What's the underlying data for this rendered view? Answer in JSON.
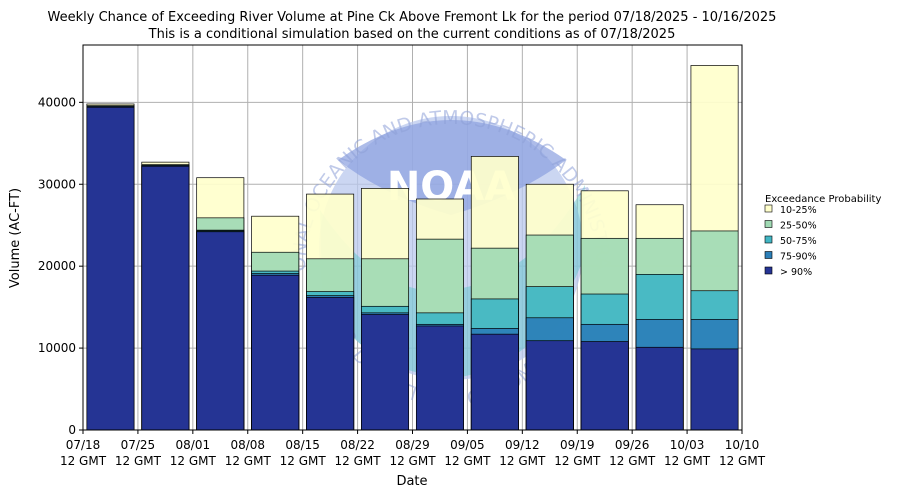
{
  "chart_data": {
    "type": "bar",
    "title": "Weekly Chance of Exceeding River Volume at Pine Ck Above Fremont Lk for the period 07/18/2025 - 10/16/2025",
    "subtitle": "This is a conditional simulation based on the current conditions as of 07/18/2025",
    "xlabel": "Date",
    "ylabel": "Volume (AC-FT)",
    "ylim": [
      0,
      47000
    ],
    "yticks": [
      "0",
      "10000",
      "20000",
      "30000",
      "40000"
    ],
    "ytick_values": [
      0,
      10000,
      20000,
      30000,
      40000
    ],
    "xticks": [
      {
        "line1": "07/18",
        "line2": "12 GMT"
      },
      {
        "line1": "07/25",
        "line2": "12 GMT"
      },
      {
        "line1": "08/01",
        "line2": "12 GMT"
      },
      {
        "line1": "08/08",
        "line2": "12 GMT"
      },
      {
        "line1": "08/15",
        "line2": "12 GMT"
      },
      {
        "line1": "08/22",
        "line2": "12 GMT"
      },
      {
        "line1": "08/29",
        "line2": "12 GMT"
      },
      {
        "line1": "09/05",
        "line2": "12 GMT"
      },
      {
        "line1": "09/12",
        "line2": "12 GMT"
      },
      {
        "line1": "09/19",
        "line2": "12 GMT"
      },
      {
        "line1": "09/26",
        "line2": "12 GMT"
      },
      {
        "line1": "10/03",
        "line2": "12 GMT"
      },
      {
        "line1": "10/10",
        "line2": "12 GMT"
      }
    ],
    "grid": true,
    "legend_title": "Exceedance Probability",
    "legend_position": "right",
    "series": [
      {
        "name": "10-25%",
        "color": "#ffffcc",
        "tops": [
          39800,
          32700,
          30800,
          26100,
          28800,
          29500,
          28200,
          33400,
          30000,
          29200,
          27500,
          44500
        ]
      },
      {
        "name": "25-50%",
        "color": "#a1dab4",
        "tops": [
          39600,
          32400,
          25900,
          21700,
          20900,
          20900,
          23300,
          22200,
          23800,
          23400,
          23400,
          24300
        ]
      },
      {
        "name": "50-75%",
        "color": "#41b6c4",
        "tops": [
          39500,
          32300,
          24400,
          19400,
          16900,
          15100,
          14300,
          16000,
          17500,
          16600,
          19000,
          17000
        ]
      },
      {
        "name": "75-90%",
        "color": "#2c7fb8",
        "tops": [
          39500,
          32300,
          24300,
          19100,
          16400,
          14300,
          12900,
          12400,
          13700,
          12900,
          13500,
          13500
        ]
      },
      {
        "name": "> 90%",
        "color": "#253494",
        "tops": [
          39400,
          32200,
          24200,
          18900,
          16200,
          14100,
          12700,
          11700,
          10900,
          10800,
          10100,
          9900
        ]
      }
    ]
  },
  "watermark": {
    "agency": "NATIONAL OCEANIC AND ATMOSPHERIC ADMINISTRATION",
    "department": "U.S. DEPARTMENT OF COMMERCE",
    "logo": "NOAA"
  },
  "colors": {
    "grid": "#b0b0b0",
    "bar_edge": "#000000"
  }
}
